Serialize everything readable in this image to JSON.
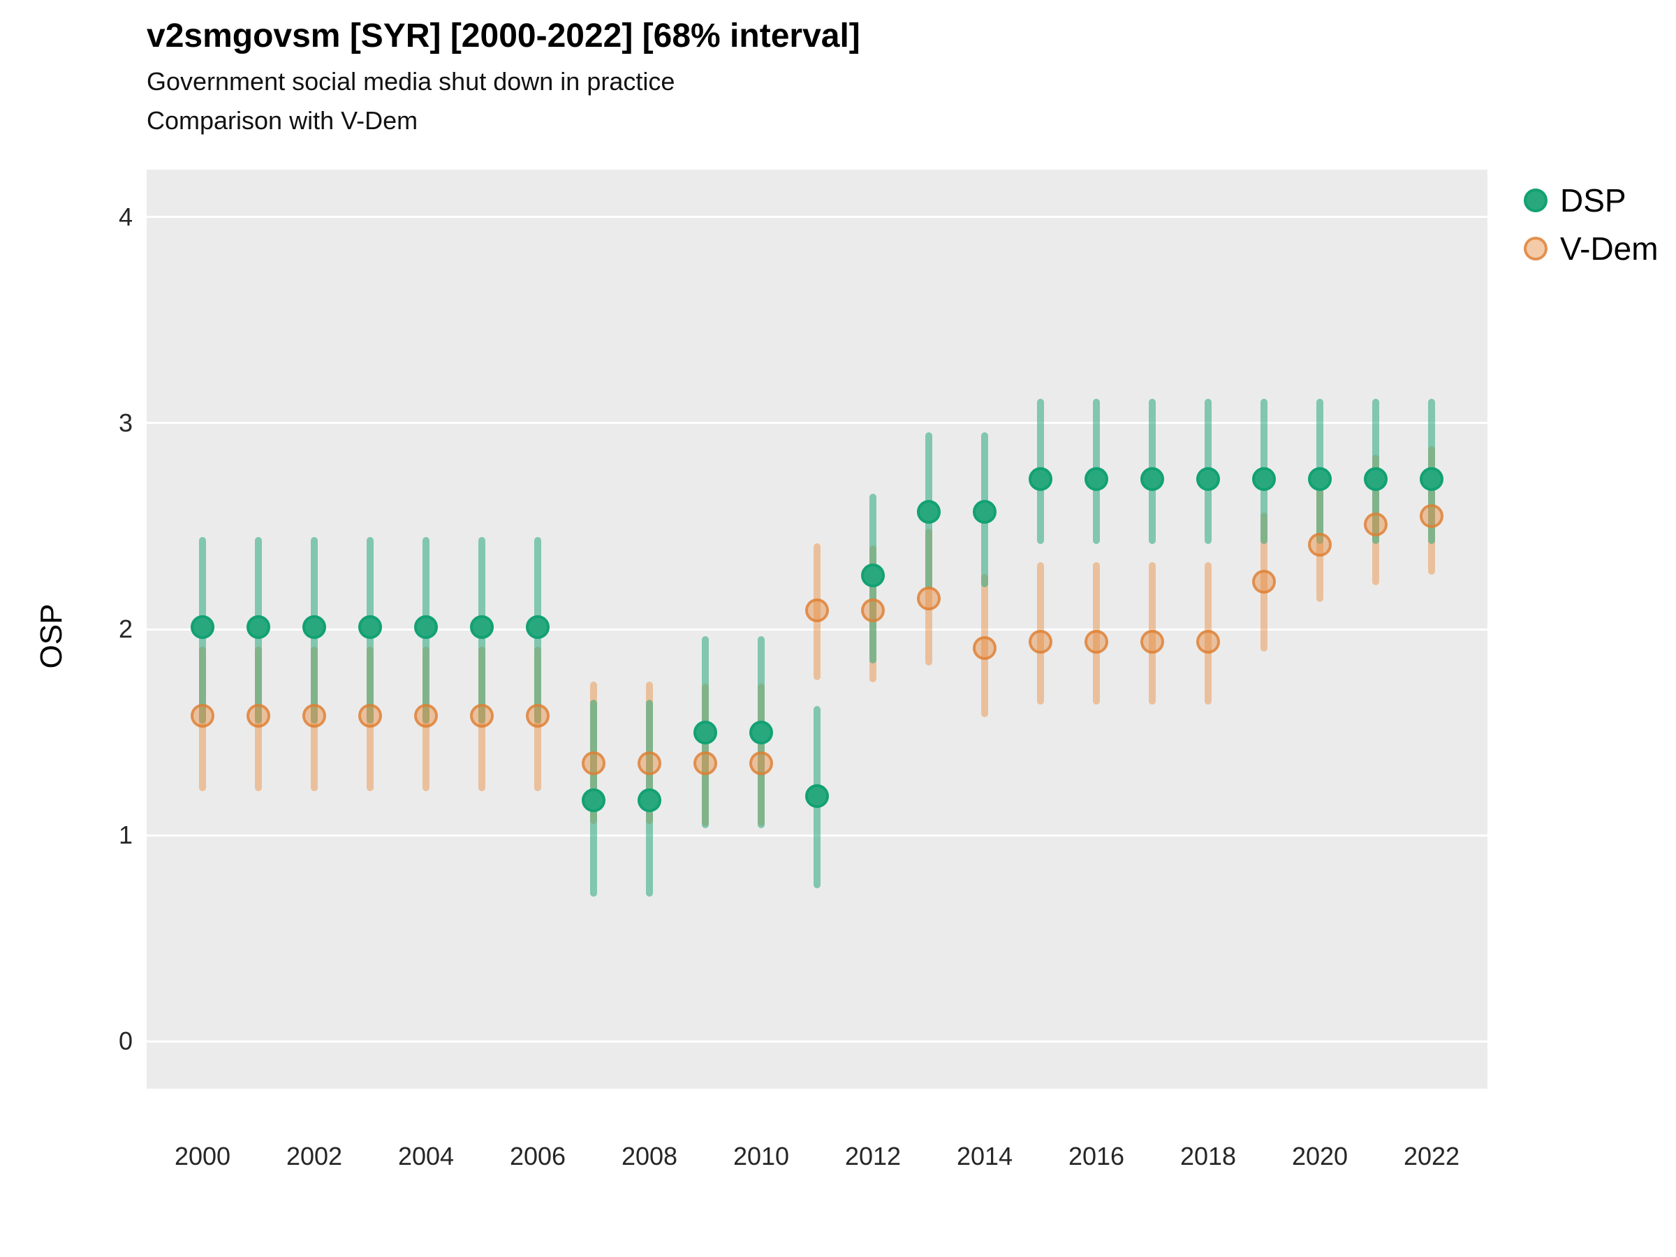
{
  "header": {
    "title": "v2smgovsm [SYR] [2000-2022] [68% interval]",
    "subtitle1": "Government social media shut down in practice",
    "subtitle2": "Comparison with V-Dem"
  },
  "chart_data": {
    "type": "pointrange",
    "title": "v2smgovsm [SYR] [2000-2022] [68% interval]",
    "xlabel": "",
    "ylabel": "OSP",
    "grid": "on",
    "legend_position": "right",
    "ylim": [
      -0.23,
      4.23
    ],
    "xlim": [
      1999,
      2023
    ],
    "y_ticks": [
      0,
      1,
      2,
      3,
      4
    ],
    "x_ticks": [
      2000,
      2002,
      2004,
      2006,
      2008,
      2010,
      2012,
      2014,
      2016,
      2018,
      2020,
      2022
    ],
    "x": [
      2000,
      2001,
      2002,
      2003,
      2004,
      2005,
      2006,
      2007,
      2008,
      2009,
      2010,
      2011,
      2012,
      2013,
      2014,
      2015,
      2016,
      2017,
      2018,
      2019,
      2020,
      2021,
      2022
    ],
    "interval_level": "68%",
    "series": [
      {
        "name": "DSP",
        "marker_fill": "#29a87e",
        "marker_stroke": "#12a173",
        "bar_color": "rgba(42,167,125,0.55)",
        "estimates": [
          2.01,
          2.01,
          2.01,
          2.01,
          2.01,
          2.01,
          2.01,
          1.17,
          1.17,
          1.5,
          1.5,
          1.19,
          2.26,
          2.57,
          2.57,
          2.73,
          2.73,
          2.73,
          2.73,
          2.73,
          2.73,
          2.73,
          2.73
        ],
        "lower": [
          1.56,
          1.56,
          1.56,
          1.56,
          1.56,
          1.56,
          1.56,
          0.72,
          0.72,
          1.05,
          1.05,
          0.76,
          1.85,
          2.21,
          2.22,
          2.43,
          2.43,
          2.43,
          2.43,
          2.43,
          2.43,
          2.43,
          2.43
        ],
        "upper": [
          2.43,
          2.43,
          2.43,
          2.43,
          2.43,
          2.43,
          2.43,
          1.64,
          1.64,
          1.95,
          1.95,
          1.61,
          2.64,
          2.94,
          2.94,
          3.1,
          3.1,
          3.1,
          3.1,
          3.1,
          3.1,
          3.1,
          3.1
        ]
      },
      {
        "name": "V-Dem",
        "marker_fill": "rgba(230,140,65,0.45)",
        "marker_stroke": "rgba(222,125,48,0.75)",
        "bar_color": "rgba(233,150,77,0.5)",
        "estimates": [
          1.58,
          1.58,
          1.58,
          1.58,
          1.58,
          1.58,
          1.58,
          1.35,
          1.35,
          1.35,
          1.35,
          2.09,
          2.09,
          2.15,
          1.91,
          1.94,
          1.94,
          1.94,
          1.94,
          2.23,
          2.41,
          2.51,
          2.55
        ],
        "lower": [
          1.23,
          1.23,
          1.23,
          1.23,
          1.23,
          1.23,
          1.23,
          1.07,
          1.07,
          1.06,
          1.06,
          1.77,
          1.76,
          1.84,
          1.59,
          1.65,
          1.65,
          1.65,
          1.65,
          1.91,
          2.15,
          2.23,
          2.28
        ],
        "upper": [
          1.9,
          1.9,
          1.9,
          1.9,
          1.9,
          1.9,
          1.9,
          1.73,
          1.73,
          1.72,
          1.72,
          2.4,
          2.39,
          2.47,
          2.25,
          2.31,
          2.31,
          2.31,
          2.31,
          2.55,
          2.68,
          2.83,
          2.87
        ]
      }
    ],
    "colors": {
      "panel_bg": "#ebebeb",
      "grid": "#ffffff",
      "dsp_green": "#29a87e",
      "vdem_orange": "#e68c41"
    }
  }
}
